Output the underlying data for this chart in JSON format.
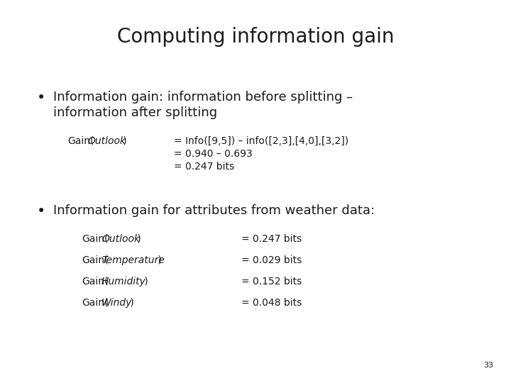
{
  "title": "Computing information gain",
  "title_fontsize": 20,
  "background_color": "#ffffff",
  "text_color": "#1a1a1a",
  "bullet1_line1": "Information gain: information before splitting –",
  "bullet1_line2": "information after splitting",
  "bullet1_fontsize": 13,
  "gain_fontsize": 10,
  "gain_block": {
    "label_normal1": "Gain(",
    "label_italic": "Outlook",
    "label_normal2": " )",
    "eq1": "= Info([9,5]) – info([2,3],[4,0],[3,2])",
    "eq2": "= 0.940 – 0.693",
    "eq3": "= 0.247 bits"
  },
  "bullet2_text": "Information gain for attributes from weather data:",
  "bullet2_fontsize": 13,
  "table_fontsize": 10,
  "table_rows": [
    {
      "italic": "Outlook",
      "value": "= 0.247 bits"
    },
    {
      "italic": "Temperature",
      "value": "= 0.029 bits"
    },
    {
      "italic": "Humidity",
      "value": "= 0.152 bits"
    },
    {
      "italic": "Windy",
      "value": "= 0.048 bits"
    }
  ],
  "page_number": "33",
  "page_number_fontsize": 8
}
